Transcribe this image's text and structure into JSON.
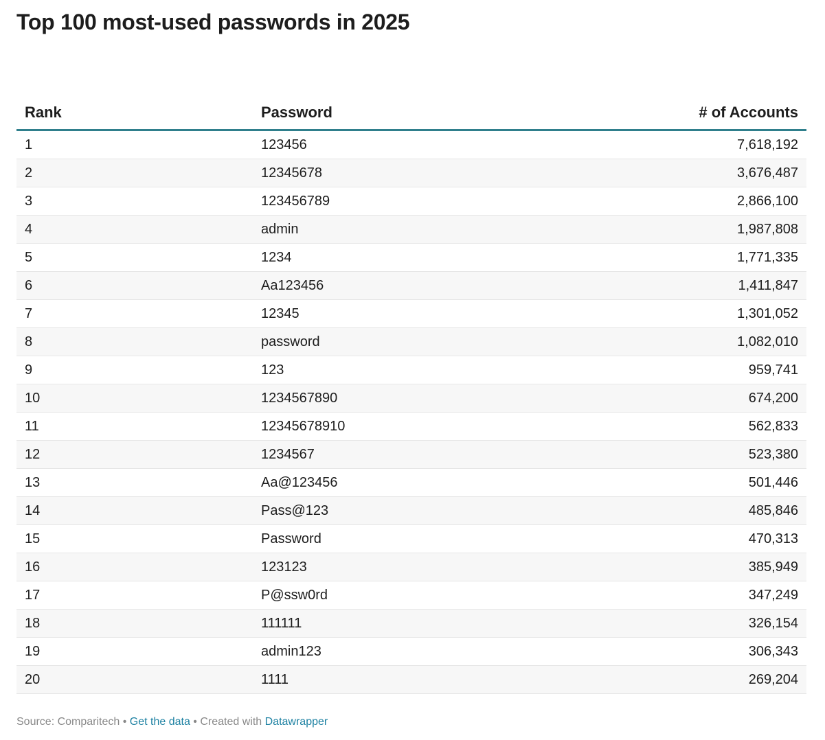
{
  "title": "Top 100 most-used passwords in 2025",
  "chart_data": {
    "type": "table",
    "title": "Top 100 most-used passwords in 2025",
    "columns": [
      "Rank",
      "Password",
      "# of Accounts"
    ],
    "rows": [
      [
        "1",
        "123456",
        "7,618,192"
      ],
      [
        "2",
        "12345678",
        "3,676,487"
      ],
      [
        "3",
        "123456789",
        "2,866,100"
      ],
      [
        "4",
        "admin",
        "1,987,808"
      ],
      [
        "5",
        "1234",
        "1,771,335"
      ],
      [
        "6",
        "Aa123456",
        "1,411,847"
      ],
      [
        "7",
        "12345",
        "1,301,052"
      ],
      [
        "8",
        "password",
        "1,082,010"
      ],
      [
        "9",
        "123",
        "959,741"
      ],
      [
        "10",
        "1234567890",
        "674,200"
      ],
      [
        "11",
        "12345678910",
        "562,833"
      ],
      [
        "12",
        "1234567",
        "523,380"
      ],
      [
        "13",
        "Aa@123456",
        "501,446"
      ],
      [
        "14",
        "Pass@123",
        "485,846"
      ],
      [
        "15",
        "Password",
        "470,313"
      ],
      [
        "16",
        "123123",
        "385,949"
      ],
      [
        "17",
        "P@ssw0rd",
        "347,249"
      ],
      [
        "18",
        "111111",
        "326,154"
      ],
      [
        "19",
        "admin123",
        "306,343"
      ],
      [
        "20",
        "1111",
        "269,204"
      ]
    ],
    "header_rule_color": "#2f7f8c",
    "stripe_color": "#f7f7f7"
  },
  "footer": {
    "source": "Source: Comparitech",
    "sep1": " • ",
    "get_data": "Get the data",
    "sep2": " • Created with ",
    "tool": "Datawrapper",
    "link_color": "#1d81a2"
  }
}
